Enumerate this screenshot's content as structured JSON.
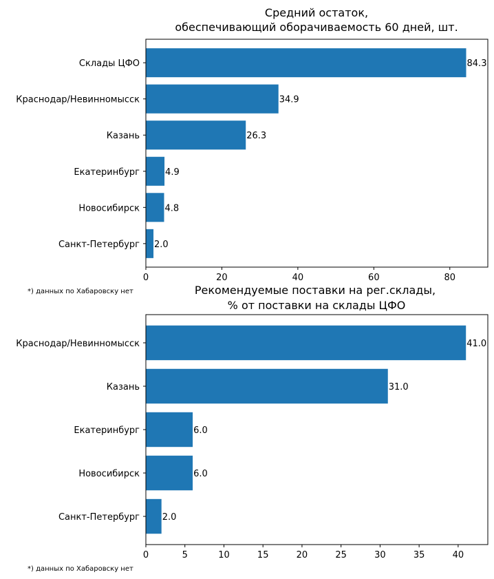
{
  "colors": {
    "bar": "#1f77b4",
    "axis": "#000000",
    "background": "#ffffff"
  },
  "chart_data": [
    {
      "type": "bar",
      "orientation": "horizontal",
      "title_lines": [
        "Средний остаток,",
        "обеспечивающий оборачиваемость 60 дней, шт."
      ],
      "categories": [
        "Склады ЦФО",
        "Краснодар/Невинномысск",
        "Казань",
        "Екатеринбург",
        "Новосибирск",
        "Санкт-Петербург"
      ],
      "values": [
        84.3,
        34.9,
        26.3,
        4.9,
        4.8,
        2.0
      ],
      "data_labels": [
        "84.3",
        "34.9",
        "26.3",
        "4.9",
        "4.8",
        "2.0"
      ],
      "xlim": [
        0,
        90
      ],
      "xticks": [
        0,
        20,
        40,
        60,
        80
      ],
      "grid": false,
      "footnote": "*) данных по Хабаровску нет"
    },
    {
      "type": "bar",
      "orientation": "horizontal",
      "title_lines": [
        "Рекомендуемые поставки на рег.склады,",
        "% от поставки на склады ЦФО"
      ],
      "categories": [
        "Краснодар/Невинномысск",
        "Казань",
        "Екатеринбург",
        "Новосибирск",
        "Санкт-Петербург"
      ],
      "values": [
        41.0,
        31.0,
        6.0,
        6.0,
        2.0
      ],
      "data_labels": [
        "41.0",
        "31.0",
        "6.0",
        "6.0",
        "2.0"
      ],
      "xlim": [
        0,
        43.8
      ],
      "xticks": [
        0,
        5,
        10,
        15,
        20,
        25,
        30,
        35,
        40
      ],
      "grid": false,
      "footnote": "*) данных по Хабаровску нет"
    }
  ]
}
